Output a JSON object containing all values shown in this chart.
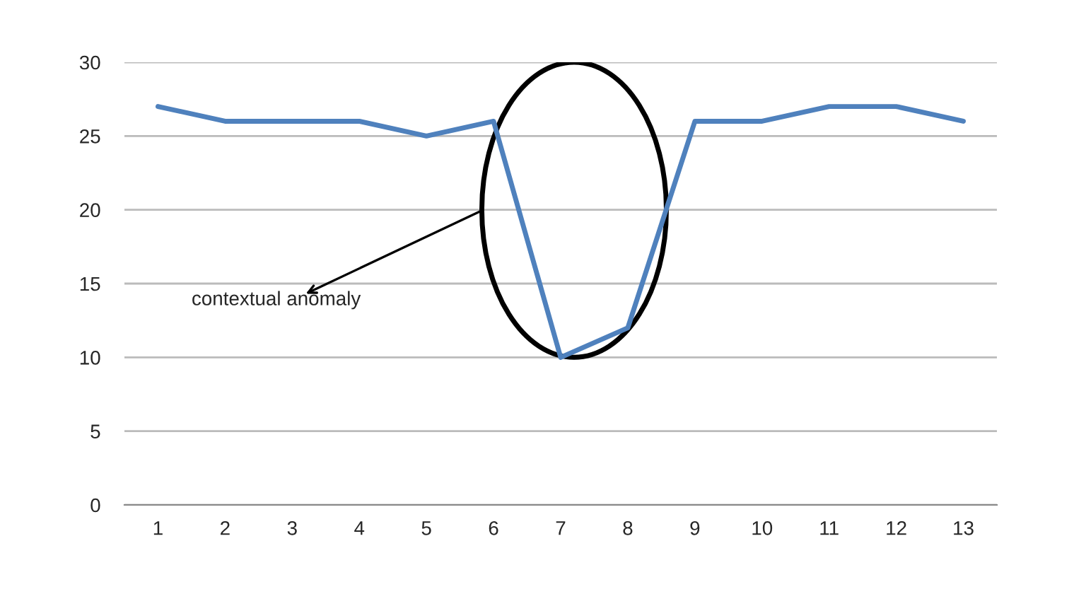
{
  "chart_data": {
    "type": "line",
    "categories": [
      "1",
      "2",
      "3",
      "4",
      "5",
      "6",
      "7",
      "8",
      "9",
      "10",
      "11",
      "12",
      "13"
    ],
    "series": [
      {
        "color": "#4f81bd",
        "values": [
          27,
          26,
          26,
          26,
          25,
          26,
          10,
          12,
          26,
          26,
          27,
          27,
          26
        ]
      }
    ],
    "ylim": [
      0,
      30
    ],
    "yticks": [
      0,
      5,
      10,
      15,
      20,
      25,
      30
    ],
    "grid": "y",
    "legend": false,
    "marker": "none",
    "line_style": "solid",
    "annotations": [
      "contextual anomaly"
    ]
  }
}
